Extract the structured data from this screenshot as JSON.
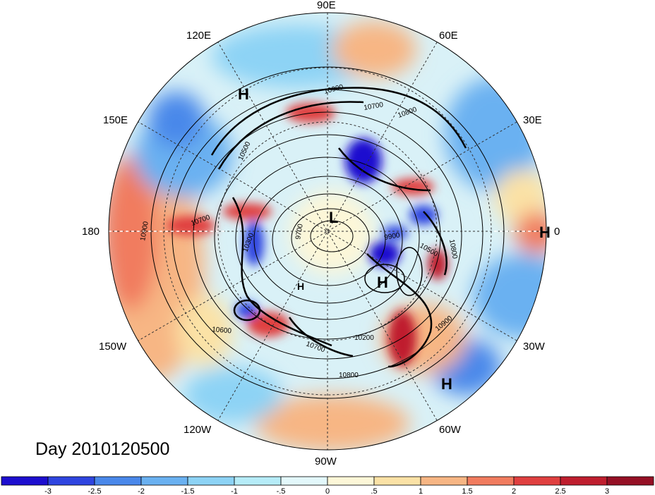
{
  "map": {
    "title": "Day 2010120500",
    "longitude_labels": [
      "90E",
      "60E",
      "30E",
      "0",
      "30W",
      "60W",
      "90W",
      "120W",
      "150W",
      "180",
      "150E",
      "120E"
    ],
    "high_low_markers": [
      "H",
      "H",
      "H",
      "H",
      "H",
      "L"
    ],
    "contour_labels": [
      "10900",
      "10700",
      "10800",
      "10500",
      "10700",
      "10900",
      "10300",
      "9700",
      "9900",
      "10500",
      "10800",
      "10900",
      "10600",
      "10200",
      "10700",
      "10800"
    ]
  },
  "colorbar": {
    "tick_labels": [
      "-3",
      "-2.5",
      "-2",
      "-1.5",
      "-1",
      "-.5",
      "0",
      ".5",
      "1",
      "1.5",
      "2",
      "2.5",
      "3"
    ],
    "colors": [
      "#1d0ecf",
      "#2f45e0",
      "#4a88ea",
      "#6ab1f1",
      "#8dd3f5",
      "#b6ecf8",
      "#e3f8fb",
      "#fdf7d8",
      "#fbe2a6",
      "#f7b684",
      "#f17c5f",
      "#e04040",
      "#bf1e2e",
      "#951025"
    ]
  }
}
